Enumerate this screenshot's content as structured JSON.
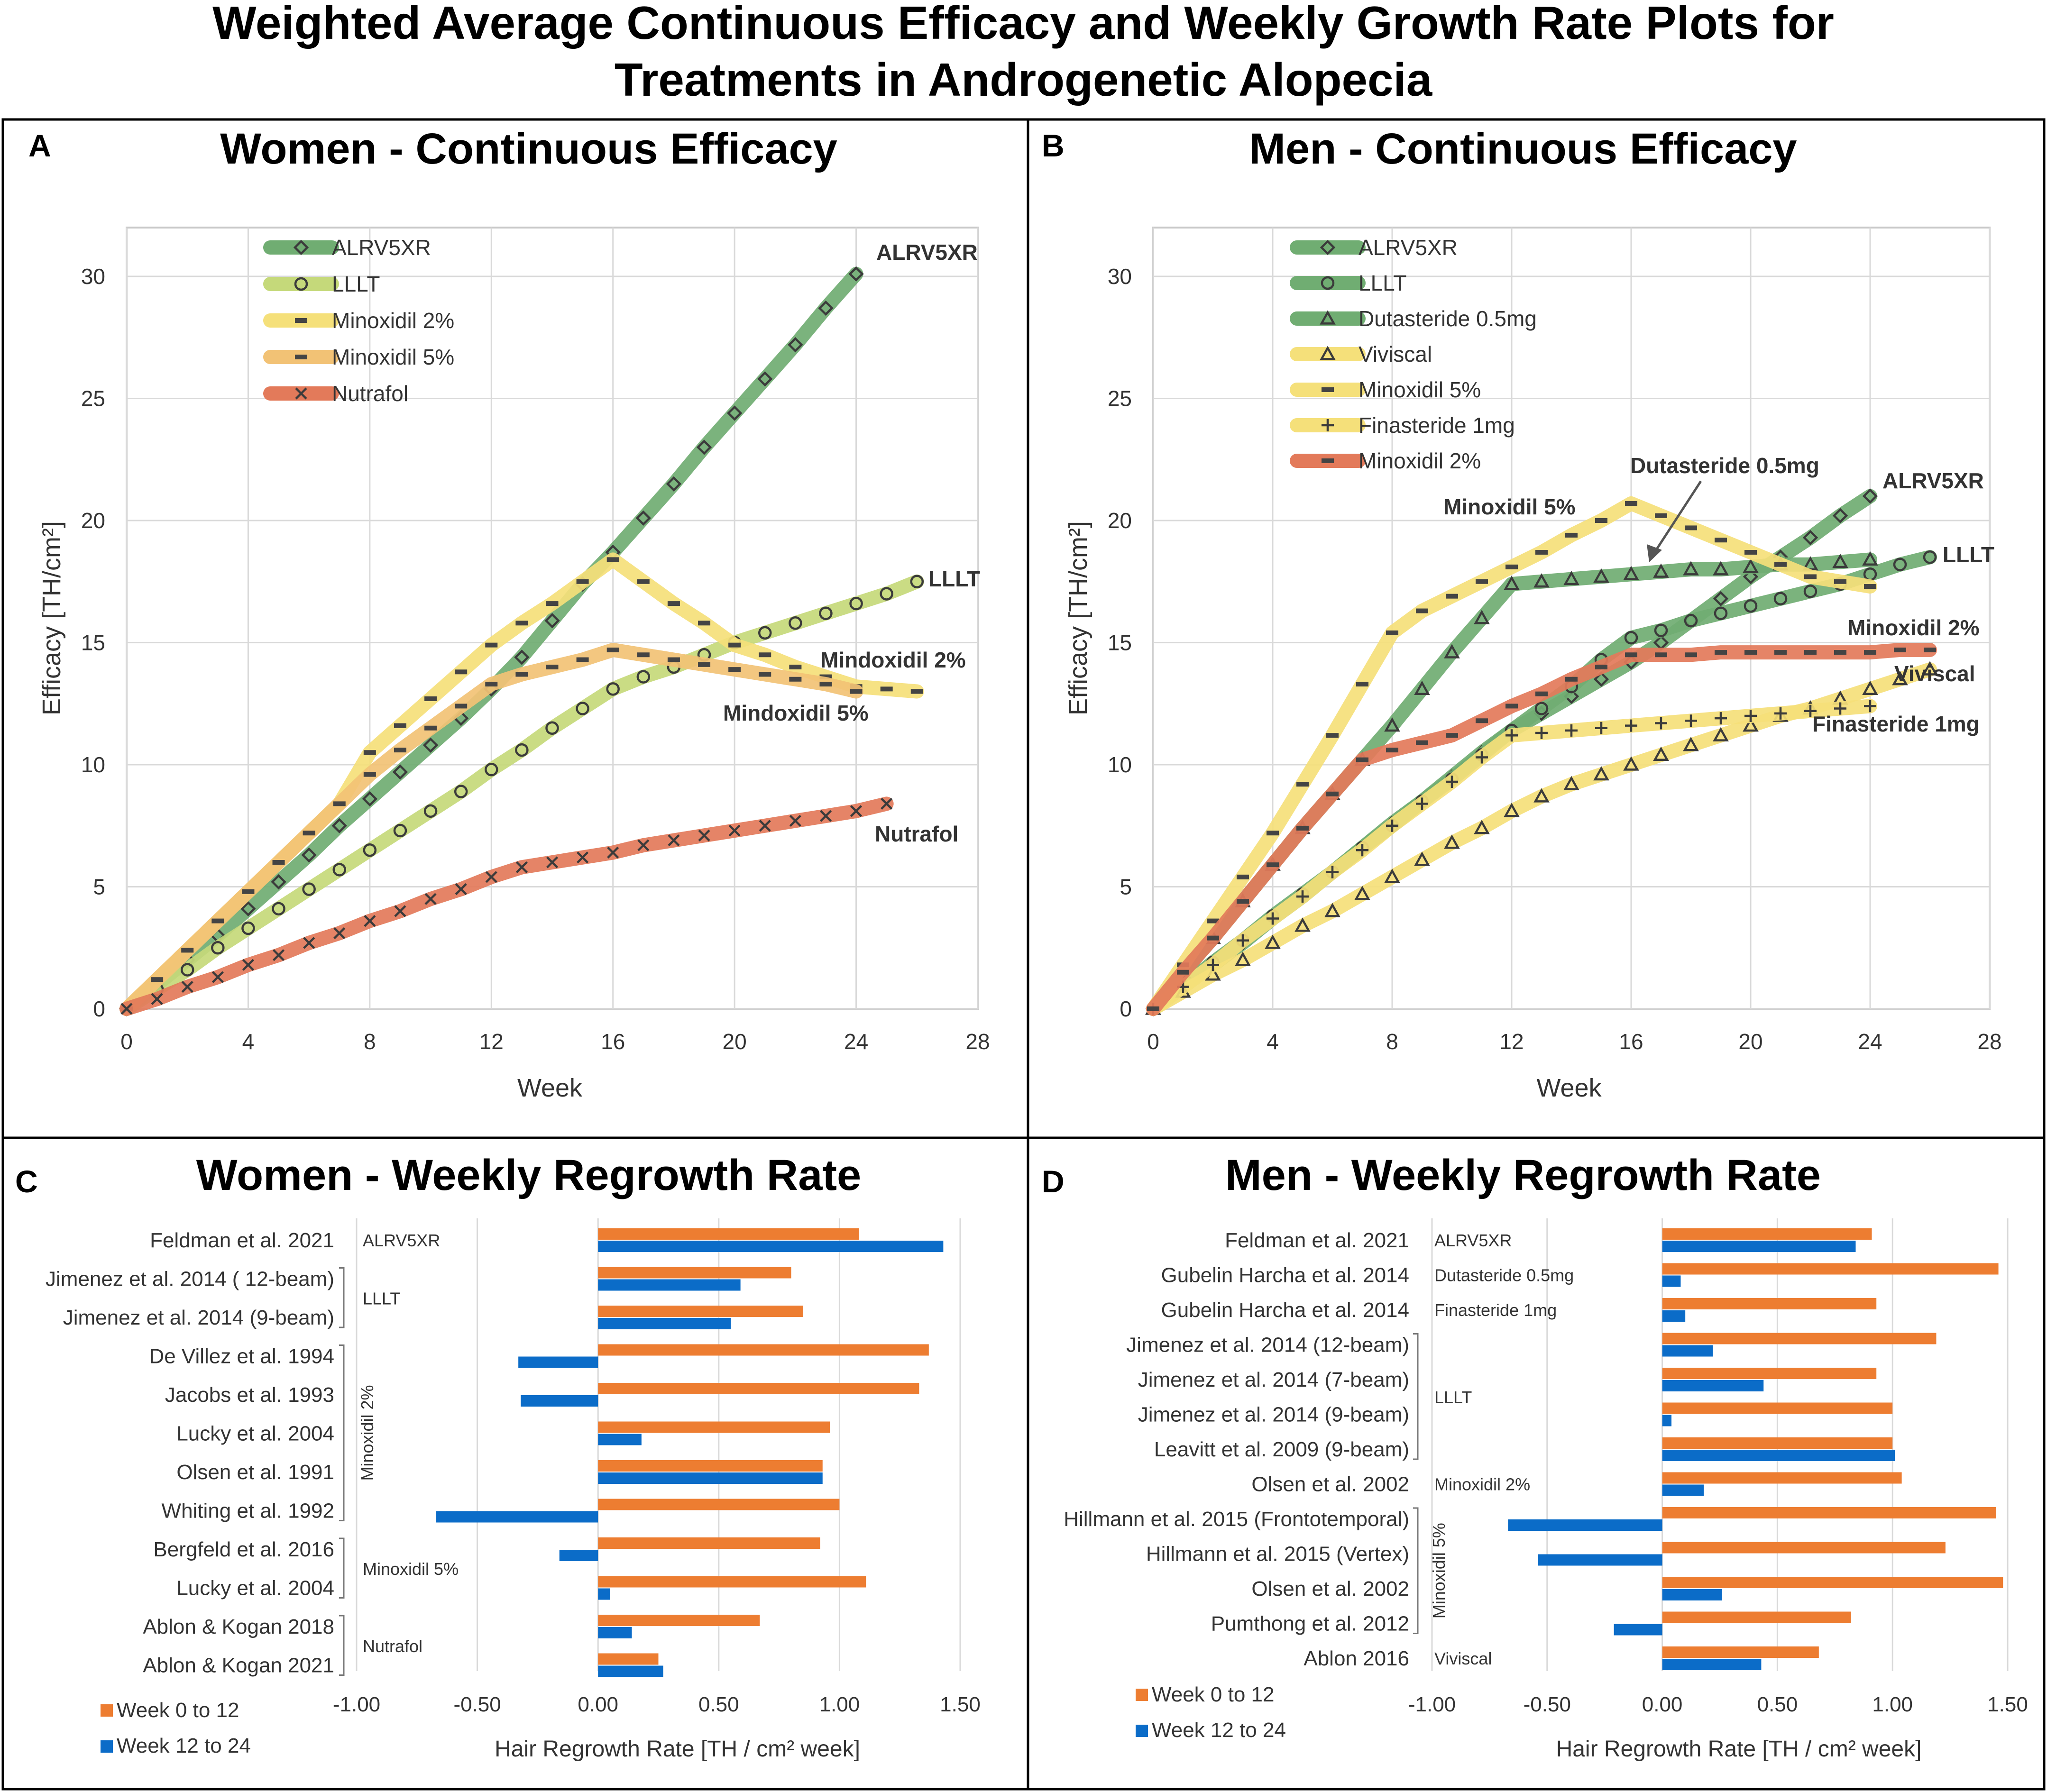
{
  "figure_title": {
    "line1": "Weighted Average Continuous Efficacy and Weekly Growth Rate Plots for",
    "line2": "Treatments in Androgenetic Alopecia"
  },
  "colors": {
    "green": "#70ad72",
    "light_green": "#c5d97a",
    "yellow": "#f5e07a",
    "orange_band": "#f2c275",
    "red": "#e37a5a",
    "bar_orange": "#ed7d31",
    "bar_blue": "#0b6cc8"
  },
  "chart_data": [
    {
      "panel": "A",
      "type": "line",
      "title": "Women - Continuous Efficacy",
      "xlabel": "Week",
      "ylabel": "Efficacy [TH/cm²]",
      "xlim": [
        0,
        28
      ],
      "ylim": [
        0,
        32
      ],
      "xticks": [
        0,
        4,
        8,
        12,
        16,
        20,
        24,
        28
      ],
      "yticks": [
        0,
        5,
        10,
        15,
        20,
        25,
        30
      ],
      "grid": true,
      "legend": "top-left",
      "series": [
        {
          "name": "ALRV5XR",
          "color_key": "green",
          "marker": "diamond",
          "x": [
            0,
            1,
            2,
            3,
            4,
            5,
            6,
            7,
            8,
            9,
            10,
            11,
            12,
            13,
            14,
            15,
            16,
            17,
            18,
            19,
            20,
            21,
            22,
            23,
            24
          ],
          "y": [
            0,
            1.0,
            2.0,
            3.0,
            4.1,
            5.2,
            6.3,
            7.5,
            8.6,
            9.7,
            10.8,
            11.9,
            13.1,
            14.4,
            15.9,
            17.4,
            18.7,
            20.1,
            21.5,
            23.0,
            24.4,
            25.8,
            27.2,
            28.7,
            30.1
          ]
        },
        {
          "name": "LLLT",
          "color_key": "light_green",
          "marker": "circle",
          "x": [
            0,
            1,
            2,
            3,
            4,
            5,
            6,
            7,
            8,
            9,
            10,
            11,
            12,
            13,
            14,
            15,
            16,
            17,
            18,
            19,
            20,
            21,
            22,
            23,
            24,
            25,
            26
          ],
          "y": [
            0,
            0.8,
            1.6,
            2.5,
            3.3,
            4.1,
            4.9,
            5.7,
            6.5,
            7.3,
            8.1,
            8.9,
            9.8,
            10.6,
            11.5,
            12.3,
            13.1,
            13.6,
            14.0,
            14.5,
            15.0,
            15.4,
            15.8,
            16.2,
            16.6,
            17.0,
            17.5
          ]
        },
        {
          "name": "Minoxidil 2%",
          "color_key": "yellow",
          "marker": "dash",
          "x": [
            0,
            1,
            2,
            3,
            4,
            5,
            6,
            7,
            8,
            9,
            10,
            11,
            12,
            13,
            14,
            15,
            16,
            17,
            18,
            19,
            20,
            21,
            22,
            23,
            24,
            25,
            26
          ],
          "y": [
            0,
            1.2,
            2.4,
            3.6,
            4.8,
            6.0,
            7.2,
            8.4,
            10.5,
            11.6,
            12.7,
            13.8,
            14.9,
            15.8,
            16.6,
            17.5,
            18.4,
            17.5,
            16.6,
            15.8,
            14.9,
            14.5,
            14.0,
            13.6,
            13.2,
            13.1,
            13.0
          ]
        },
        {
          "name": "Minoxidil 5%",
          "color_key": "orange_band",
          "marker": "dash",
          "x": [
            0,
            1,
            2,
            3,
            4,
            5,
            6,
            7,
            8,
            9,
            10,
            11,
            12,
            13,
            14,
            15,
            16,
            17,
            18,
            19,
            20,
            21,
            22,
            23,
            24
          ],
          "y": [
            0,
            1.2,
            2.4,
            3.6,
            4.8,
            6.0,
            7.2,
            8.4,
            9.6,
            10.6,
            11.5,
            12.4,
            13.3,
            13.7,
            14.0,
            14.3,
            14.7,
            14.5,
            14.3,
            14.1,
            13.9,
            13.7,
            13.5,
            13.3,
            13.0
          ]
        },
        {
          "name": "Nutrafol",
          "color_key": "red",
          "marker": "x",
          "x": [
            0,
            1,
            2,
            3,
            4,
            5,
            6,
            7,
            8,
            9,
            10,
            11,
            12,
            13,
            14,
            15,
            16,
            17,
            18,
            19,
            20,
            21,
            22,
            23,
            24,
            25
          ],
          "y": [
            0,
            0.4,
            0.9,
            1.3,
            1.8,
            2.2,
            2.7,
            3.1,
            3.6,
            4.0,
            4.5,
            4.9,
            5.4,
            5.8,
            6.0,
            6.2,
            6.4,
            6.7,
            6.9,
            7.1,
            7.3,
            7.5,
            7.7,
            7.9,
            8.1,
            8.4
          ]
        }
      ],
      "annotations": [
        "ALRV5XR",
        "LLLT",
        "Mindoxidil 2%",
        "Mindoxidil 5%",
        "Nutrafol"
      ]
    },
    {
      "panel": "B",
      "type": "line",
      "title": "Men - Continuous Efficacy",
      "xlabel": "Week",
      "ylabel": "Efficacy [TH/cm²]",
      "xlim": [
        0,
        28
      ],
      "ylim": [
        0,
        32
      ],
      "xticks": [
        0,
        4,
        8,
        12,
        16,
        20,
        24,
        28
      ],
      "yticks": [
        0,
        5,
        10,
        15,
        20,
        25,
        30
      ],
      "grid": true,
      "legend": "top-left",
      "series": [
        {
          "name": "ALRV5XR",
          "color_key": "green",
          "marker": "diamond",
          "x": [
            0,
            1,
            2,
            3,
            4,
            5,
            6,
            7,
            8,
            9,
            10,
            11,
            12,
            13,
            14,
            15,
            16,
            17,
            18,
            19,
            20,
            21,
            22,
            23,
            24
          ],
          "y": [
            0,
            0.9,
            1.8,
            2.7,
            3.7,
            4.6,
            5.6,
            6.6,
            7.6,
            8.5,
            9.5,
            10.5,
            11.4,
            12.1,
            12.8,
            13.5,
            14.2,
            15.0,
            15.9,
            16.8,
            17.7,
            18.5,
            19.3,
            20.2,
            21.0
          ]
        },
        {
          "name": "LLLT",
          "color_key": "green",
          "marker": "circle",
          "x": [
            0,
            1,
            2,
            3,
            4,
            5,
            6,
            7,
            8,
            9,
            10,
            11,
            12,
            13,
            14,
            15,
            16,
            17,
            18,
            19,
            20,
            21,
            22,
            23,
            24,
            25,
            26
          ],
          "y": [
            0,
            0.9,
            1.9,
            2.8,
            3.8,
            4.7,
            5.6,
            6.6,
            7.5,
            8.5,
            9.4,
            10.4,
            11.4,
            12.3,
            13.2,
            14.3,
            15.2,
            15.5,
            15.9,
            16.2,
            16.5,
            16.8,
            17.1,
            17.4,
            17.8,
            18.2,
            18.5
          ]
        },
        {
          "name": "Dutasteride 0.5mg",
          "color_key": "green",
          "marker": "triangle",
          "x": [
            0,
            1,
            2,
            3,
            4,
            5,
            6,
            7,
            8,
            9,
            10,
            11,
            12,
            13,
            14,
            15,
            16,
            17,
            18,
            19,
            20,
            21,
            22,
            23,
            24
          ],
          "y": [
            0,
            1.5,
            2.9,
            4.4,
            5.9,
            7.4,
            8.8,
            10.2,
            11.6,
            13.1,
            14.6,
            16.0,
            17.4,
            17.5,
            17.6,
            17.7,
            17.8,
            17.9,
            18.0,
            18.0,
            18.1,
            18.2,
            18.2,
            18.3,
            18.4
          ]
        },
        {
          "name": "Viviscal",
          "color_key": "yellow",
          "marker": "triangle",
          "x": [
            0,
            1,
            2,
            3,
            4,
            5,
            6,
            7,
            8,
            9,
            10,
            11,
            12,
            13,
            14,
            15,
            16,
            17,
            18,
            19,
            20,
            21,
            22,
            23,
            24,
            25,
            26
          ],
          "y": [
            0,
            0.7,
            1.4,
            2.0,
            2.7,
            3.4,
            4.0,
            4.7,
            5.4,
            6.1,
            6.8,
            7.4,
            8.1,
            8.7,
            9.2,
            9.6,
            10.0,
            10.4,
            10.8,
            11.2,
            11.6,
            12.0,
            12.3,
            12.7,
            13.1,
            13.5,
            13.9
          ]
        },
        {
          "name": "Minoxidil 5%",
          "color_key": "yellow",
          "marker": "dash",
          "x": [
            0,
            1,
            2,
            3,
            4,
            5,
            6,
            7,
            8,
            9,
            10,
            11,
            12,
            13,
            14,
            15,
            16,
            17,
            18,
            19,
            20,
            21,
            22,
            23,
            24
          ],
          "y": [
            0,
            1.8,
            3.6,
            5.4,
            7.2,
            9.2,
            11.2,
            13.3,
            15.4,
            16.3,
            16.9,
            17.5,
            18.1,
            18.7,
            19.4,
            20.0,
            20.7,
            20.2,
            19.7,
            19.2,
            18.7,
            18.2,
            17.7,
            17.5,
            17.3
          ]
        },
        {
          "name": "Finasteride 1mg",
          "color_key": "yellow",
          "marker": "plus",
          "x": [
            0,
            1,
            2,
            3,
            4,
            5,
            6,
            7,
            8,
            9,
            10,
            11,
            12,
            13,
            14,
            15,
            16,
            17,
            18,
            19,
            20,
            21,
            22,
            23,
            24
          ],
          "y": [
            0,
            0.9,
            1.8,
            2.8,
            3.7,
            4.6,
            5.6,
            6.5,
            7.5,
            8.4,
            9.3,
            10.3,
            11.2,
            11.3,
            11.4,
            11.5,
            11.6,
            11.7,
            11.8,
            11.9,
            12.0,
            12.1,
            12.2,
            12.3,
            12.4
          ]
        },
        {
          "name": "Minoxidil 2%",
          "color_key": "red",
          "marker": "dash",
          "x": [
            0,
            1,
            2,
            3,
            4,
            5,
            6,
            7,
            8,
            9,
            10,
            11,
            12,
            13,
            14,
            15,
            16,
            17,
            18,
            19,
            20,
            21,
            22,
            23,
            24,
            25,
            26
          ],
          "y": [
            0,
            1.5,
            2.9,
            4.4,
            5.9,
            7.4,
            8.8,
            10.2,
            10.6,
            10.9,
            11.2,
            11.8,
            12.4,
            12.9,
            13.5,
            14.0,
            14.5,
            14.5,
            14.5,
            14.6,
            14.6,
            14.6,
            14.6,
            14.6,
            14.6,
            14.7,
            14.7
          ]
        }
      ],
      "annotations": [
        "Dutasteride 0.5mg",
        "ALRV5XR",
        "Minoxidil 5%",
        "LLLT",
        "Minoxidil 2%",
        "Viviscal",
        "Finasteride 1mg"
      ]
    },
    {
      "panel": "C",
      "type": "bar",
      "orientation": "horizontal",
      "title": "Women - Weekly Regrowth Rate",
      "xlabel": "Hair Regrowth Rate [TH / cm² week]",
      "xlim": [
        -1.0,
        1.5
      ],
      "xticks": [
        "-1.00",
        "-0.50",
        "0.00",
        "0.50",
        "1.00",
        "1.50"
      ],
      "grid": true,
      "legend": "bottom-left",
      "series_names": [
        "Week 0 to 12",
        "Week 12 to 24"
      ],
      "categories": [
        "Feldman et al. 2021",
        "Jimenez et al. 2014 ( 12-beam)",
        "Jimenez et al. 2014 (9-beam)",
        "De Villez et al. 1994",
        "Jacobs et al. 1993",
        "Lucky et al. 2004",
        "Olsen et al. 1991",
        "Whiting et al. 1992",
        "Bergfeld et al. 2016",
        "Lucky et al. 2004",
        "Ablon & Kogan 2018",
        "Ablon & Kogan 2021"
      ],
      "week0_12": [
        1.08,
        0.8,
        0.85,
        1.37,
        1.33,
        0.96,
        0.93,
        1.0,
        0.92,
        1.11,
        0.67,
        0.25
      ],
      "week12_24": [
        1.43,
        0.59,
        0.55,
        -0.33,
        -0.32,
        0.18,
        0.93,
        -0.67,
        -0.16,
        0.05,
        0.14,
        0.27
      ],
      "groups": [
        {
          "label": "ALRV5XR",
          "first": 0,
          "last": 0,
          "rotated": false
        },
        {
          "label": "LLLT",
          "first": 1,
          "last": 2,
          "rotated": false
        },
        {
          "label": "Minoxidil 2%",
          "first": 3,
          "last": 7,
          "rotated": true
        },
        {
          "label": "Minoxidil 5%",
          "first": 8,
          "last": 9,
          "rotated": false
        },
        {
          "label": "Nutrafol",
          "first": 10,
          "last": 11,
          "rotated": false
        }
      ]
    },
    {
      "panel": "D",
      "type": "bar",
      "orientation": "horizontal",
      "title": "Men - Weekly Regrowth Rate",
      "xlabel": "Hair Regrowth Rate [TH / cm² week]",
      "xlim": [
        -1.0,
        1.5
      ],
      "xticks": [
        "-1.00",
        "-0.50",
        "0.00",
        "0.50",
        "1.00",
        "1.50"
      ],
      "grid": true,
      "legend": "bottom-left",
      "series_names": [
        "Week 0 to 12",
        "Week 12 to 24"
      ],
      "categories": [
        "Feldman et al. 2021",
        "Gubelin Harcha et al. 2014",
        "Gubelin Harcha et al. 2014",
        "Jimenez et al. 2014 (12-beam)",
        "Jimenez et al. 2014 (7-beam)",
        "Jimenez et al. 2014 (9-beam)",
        "Leavitt et al. 2009 (9-beam)",
        "Olsen et al. 2002",
        "Hillmann et al. 2015 (Frontotemporal)",
        "Hillmann et al. 2015 (Vertex)",
        "Olsen et al. 2002",
        "Pumthong et al. 2012",
        "Ablon  2016"
      ],
      "week0_12": [
        0.91,
        1.46,
        0.93,
        1.19,
        0.93,
        1.0,
        1.0,
        1.04,
        1.45,
        1.23,
        1.48,
        0.82,
        0.68
      ],
      "week12_24": [
        0.84,
        0.08,
        0.1,
        0.22,
        0.44,
        0.04,
        1.01,
        0.18,
        -0.67,
        -0.54,
        0.26,
        -0.21,
        0.43
      ],
      "groups": [
        {
          "label": "ALRV5XR",
          "first": 0,
          "last": 0,
          "rotated": false
        },
        {
          "label": "Dutasteride 0.5mg",
          "first": 1,
          "last": 1,
          "rotated": false
        },
        {
          "label": "Finasteride 1mg",
          "first": 2,
          "last": 2,
          "rotated": false
        },
        {
          "label": "LLLT",
          "first": 3,
          "last": 6,
          "rotated": false
        },
        {
          "label": "Minoxidil 2%",
          "first": 7,
          "last": 7,
          "rotated": false
        },
        {
          "label": "Minoxidil 5%",
          "first": 8,
          "last": 11,
          "rotated": true
        },
        {
          "label": "Viviscal",
          "first": 12,
          "last": 12,
          "rotated": false
        }
      ]
    }
  ]
}
